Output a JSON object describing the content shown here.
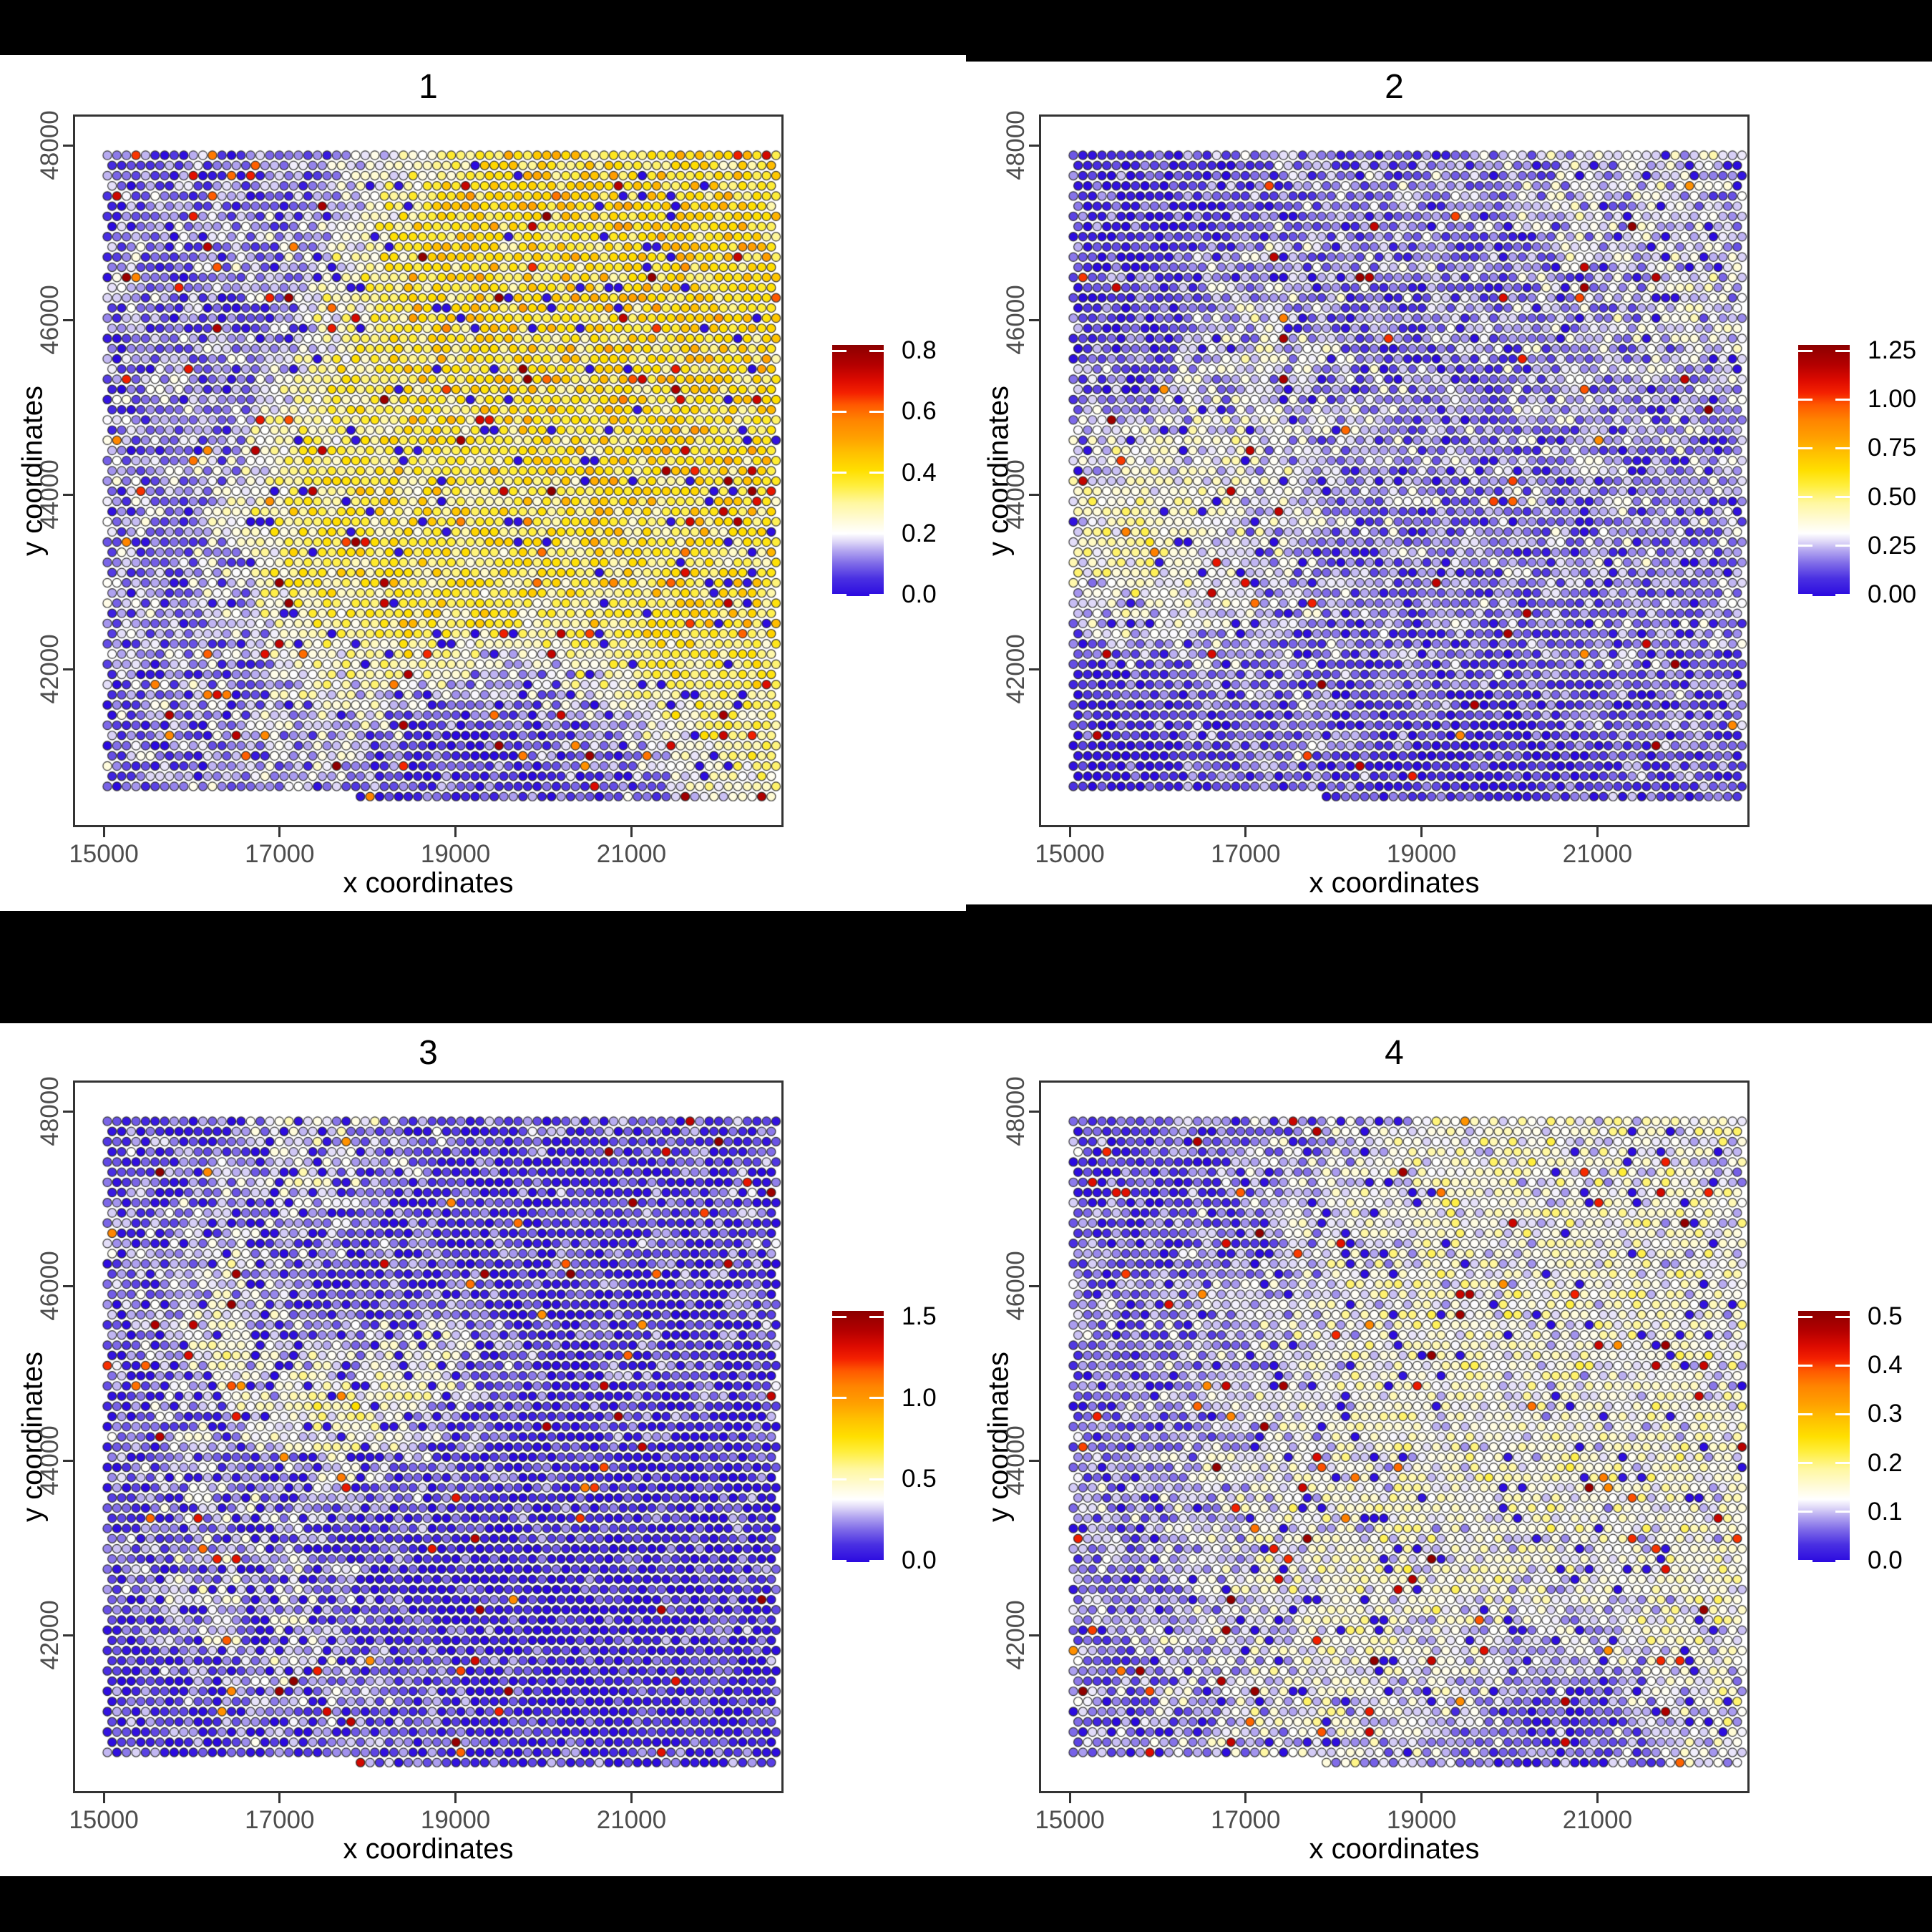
{
  "figure": {
    "background_color": "#ffffff",
    "panel_border_color": "#333333",
    "tick_label_color": "#4d4d4d",
    "letterbox_color": "#000000"
  },
  "colorbar_stops": [
    [
      0.0,
      "#2B0AE0"
    ],
    [
      0.07,
      "#4A30E2"
    ],
    [
      0.13,
      "#7F6BE8"
    ],
    [
      0.18,
      "#B3A6F0"
    ],
    [
      0.22,
      "#E2DCF8"
    ],
    [
      0.25,
      "#FFFFFF"
    ],
    [
      0.3,
      "#FFFBD9"
    ],
    [
      0.37,
      "#FFF7A0"
    ],
    [
      0.44,
      "#FFEE3C"
    ],
    [
      0.5,
      "#FFDF00"
    ],
    [
      0.57,
      "#FFC000"
    ],
    [
      0.63,
      "#FFA000"
    ],
    [
      0.7,
      "#FF8400"
    ],
    [
      0.76,
      "#FF5A00"
    ],
    [
      0.81,
      "#F42000"
    ],
    [
      0.86,
      "#DC0A00"
    ],
    [
      0.92,
      "#B40000"
    ],
    [
      1.0,
      "#8B0000"
    ]
  ],
  "chart_data": [
    {
      "type": "scatter",
      "title": "1",
      "xlabel": "x coordinates",
      "ylabel": "y coordinates",
      "x_ticks": [
        15000,
        17000,
        19000,
        21000
      ],
      "y_ticks": [
        48000,
        46000,
        44000,
        42000
      ],
      "x_range": [
        14700,
        22700
      ],
      "y_range": [
        40400,
        48330
      ],
      "legend_position": "right",
      "grid": "off",
      "colorbar": {
        "tick_labels": [
          "0.8",
          "0.6",
          "0.4",
          "0.2",
          "0.0"
        ],
        "limits": [
          0.0,
          0.82
        ]
      },
      "spots": {
        "layout": "hex-grid",
        "cols": 71,
        "rows": 64,
        "noise_pct": 11,
        "deep_blue_fraction": 0.05,
        "hot_red_fraction": 0.03,
        "seed": 101,
        "field_pct_12x12_top_to_bottom": [
          [
            13,
            13,
            14,
            15,
            18,
            32,
            46,
            50,
            50,
            48,
            46,
            45
          ],
          [
            13,
            13,
            14,
            15,
            26,
            45,
            52,
            50,
            48,
            50,
            50,
            48
          ],
          [
            13,
            14,
            14,
            16,
            30,
            48,
            50,
            46,
            50,
            52,
            50,
            50
          ],
          [
            13,
            14,
            15,
            18,
            36,
            48,
            46,
            50,
            48,
            50,
            52,
            50
          ],
          [
            14,
            14,
            16,
            30,
            44,
            42,
            48,
            46,
            50,
            48,
            50,
            48
          ],
          [
            14,
            15,
            18,
            36,
            42,
            46,
            44,
            48,
            46,
            50,
            48,
            46
          ],
          [
            14,
            15,
            25,
            40,
            44,
            40,
            46,
            44,
            48,
            46,
            48,
            44
          ],
          [
            14,
            16,
            20,
            38,
            46,
            44,
            40,
            46,
            44,
            46,
            44,
            46
          ],
          [
            14,
            15,
            18,
            30,
            40,
            46,
            44,
            40,
            44,
            46,
            46,
            44
          ],
          [
            13,
            15,
            16,
            22,
            34,
            28,
            22,
            18,
            28,
            40,
            44,
            42
          ],
          [
            13,
            14,
            15,
            18,
            24,
            8,
            5,
            8,
            10,
            24,
            40,
            38
          ],
          [
            13,
            14,
            14,
            16,
            14,
            6,
            4,
            5,
            8,
            14,
            30,
            34
          ]
        ]
      }
    },
    {
      "type": "scatter",
      "title": "2",
      "xlabel": "x coordinates",
      "ylabel": "y coordinates",
      "x_ticks": [
        15000,
        17000,
        19000,
        21000
      ],
      "y_ticks": [
        48000,
        46000,
        44000,
        42000
      ],
      "x_range": [
        14700,
        22700
      ],
      "y_range": [
        40400,
        48330
      ],
      "legend_position": "right",
      "grid": "off",
      "colorbar": {
        "tick_labels": [
          "1.25",
          "1.00",
          "0.75",
          "0.50",
          "0.25",
          "0.00"
        ],
        "limits": [
          0.0,
          1.3
        ]
      },
      "spots": {
        "layout": "hex-grid",
        "cols": 71,
        "rows": 64,
        "noise_pct": 10,
        "deep_blue_fraction": 0.07,
        "hot_red_fraction": 0.015,
        "seed": 202,
        "field_pct_12x12_top_to_bottom": [
          [
            8,
            6,
            8,
            12,
            14,
            14,
            15,
            15,
            20,
            22,
            24,
            20
          ],
          [
            6,
            5,
            7,
            12,
            15,
            15,
            15,
            15,
            22,
            24,
            22,
            20
          ],
          [
            7,
            6,
            14,
            22,
            18,
            14,
            15,
            14,
            20,
            22,
            24,
            22
          ],
          [
            8,
            7,
            16,
            24,
            20,
            15,
            14,
            15,
            18,
            20,
            22,
            20
          ],
          [
            10,
            12,
            20,
            22,
            18,
            16,
            15,
            14,
            16,
            18,
            18,
            18
          ],
          [
            22,
            28,
            30,
            25,
            20,
            18,
            16,
            15,
            16,
            16,
            16,
            16
          ],
          [
            30,
            36,
            30,
            24,
            20,
            16,
            15,
            16,
            16,
            16,
            15,
            16
          ],
          [
            28,
            33,
            28,
            22,
            17,
            15,
            14,
            15,
            15,
            16,
            16,
            16
          ],
          [
            22,
            26,
            22,
            18,
            15,
            14,
            13,
            14,
            14,
            15,
            15,
            15
          ],
          [
            6,
            8,
            14,
            16,
            14,
            12,
            11,
            10,
            12,
            13,
            14,
            14
          ],
          [
            3,
            4,
            10,
            15,
            13,
            9,
            6,
            6,
            8,
            10,
            12,
            12
          ],
          [
            4,
            3,
            8,
            13,
            12,
            8,
            5,
            4,
            6,
            8,
            10,
            12
          ]
        ]
      }
    },
    {
      "type": "scatter",
      "title": "3",
      "xlabel": "x coordinates",
      "ylabel": "y coordinates",
      "x_ticks": [
        15000,
        17000,
        19000,
        21000
      ],
      "y_ticks": [
        48000,
        46000,
        44000,
        42000
      ],
      "x_range": [
        14700,
        22700
      ],
      "y_range": [
        40400,
        48330
      ],
      "legend_position": "right",
      "grid": "off",
      "colorbar": {
        "tick_labels": [
          "1.5",
          "1.0",
          "0.5",
          "0.0"
        ],
        "limits": [
          0.0,
          1.55
        ]
      },
      "spots": {
        "layout": "hex-grid",
        "cols": 71,
        "rows": 64,
        "noise_pct": 10,
        "deep_blue_fraction": 0.2,
        "hot_red_fraction": 0.02,
        "seed": 303,
        "field_pct_12x12_top_to_bottom": [
          [
            10,
            10,
            12,
            20,
            24,
            15,
            10,
            10,
            10,
            10,
            10,
            10
          ],
          [
            10,
            12,
            18,
            28,
            18,
            12,
            10,
            8,
            10,
            10,
            12,
            10
          ],
          [
            12,
            15,
            22,
            18,
            12,
            10,
            8,
            8,
            8,
            10,
            10,
            10
          ],
          [
            10,
            18,
            25,
            15,
            10,
            8,
            8,
            6,
            8,
            8,
            10,
            10
          ],
          [
            12,
            20,
            30,
            25,
            15,
            34,
            20,
            8,
            8,
            8,
            10,
            10
          ],
          [
            10,
            15,
            22,
            30,
            40,
            28,
            12,
            8,
            6,
            8,
            8,
            10
          ],
          [
            12,
            18,
            15,
            20,
            24,
            12,
            8,
            6,
            8,
            6,
            8,
            8
          ],
          [
            10,
            12,
            18,
            15,
            10,
            8,
            6,
            6,
            6,
            8,
            8,
            8
          ],
          [
            12,
            20,
            24,
            18,
            12,
            8,
            6,
            5,
            6,
            6,
            8,
            8
          ],
          [
            8,
            15,
            20,
            24,
            15,
            10,
            6,
            5,
            5,
            6,
            6,
            8
          ],
          [
            10,
            8,
            12,
            15,
            20,
            12,
            8,
            5,
            4,
            5,
            6,
            8
          ],
          [
            8,
            10,
            10,
            12,
            14,
            10,
            8,
            6,
            5,
            6,
            8,
            8
          ]
        ]
      }
    },
    {
      "type": "scatter",
      "title": "4",
      "xlabel": "x coordinates",
      "ylabel": "y coordinates",
      "x_ticks": [
        15000,
        17000,
        19000,
        21000
      ],
      "y_ticks": [
        48000,
        46000,
        44000,
        42000
      ],
      "x_range": [
        14700,
        22700
      ],
      "y_range": [
        40400,
        48330
      ],
      "legend_position": "right",
      "grid": "off",
      "colorbar": {
        "tick_labels": [
          "0.5",
          "0.4",
          "0.3",
          "0.2",
          "0.1",
          "0.0"
        ],
        "limits": [
          0.0,
          0.52
        ]
      },
      "spots": {
        "layout": "hex-grid",
        "cols": 71,
        "rows": 64,
        "noise_pct": 10,
        "deep_blue_fraction": 0.07,
        "hot_red_fraction": 0.025,
        "seed": 404,
        "field_pct_12x12_top_to_bottom": [
          [
            12,
            10,
            12,
            15,
            18,
            22,
            25,
            28,
            30,
            28,
            26,
            28
          ],
          [
            10,
            8,
            10,
            15,
            20,
            25,
            28,
            30,
            28,
            30,
            28,
            26
          ],
          [
            12,
            10,
            14,
            16,
            22,
            26,
            30,
            28,
            30,
            28,
            30,
            28
          ],
          [
            14,
            12,
            15,
            18,
            24,
            28,
            28,
            30,
            28,
            30,
            28,
            30
          ],
          [
            15,
            14,
            16,
            20,
            26,
            28,
            30,
            28,
            30,
            28,
            30,
            28
          ],
          [
            15,
            15,
            18,
            22,
            26,
            30,
            28,
            30,
            28,
            30,
            28,
            30
          ],
          [
            16,
            15,
            20,
            24,
            28,
            28,
            30,
            28,
            30,
            28,
            30,
            28
          ],
          [
            16,
            16,
            20,
            26,
            28,
            30,
            28,
            30,
            28,
            28,
            30,
            28
          ],
          [
            15,
            16,
            22,
            26,
            28,
            28,
            30,
            28,
            26,
            28,
            28,
            30
          ],
          [
            15,
            16,
            20,
            26,
            28,
            30,
            26,
            24,
            20,
            24,
            28,
            28
          ],
          [
            14,
            15,
            18,
            24,
            28,
            26,
            22,
            15,
            10,
            15,
            25,
            28
          ],
          [
            14,
            15,
            18,
            22,
            26,
            24,
            18,
            10,
            8,
            12,
            20,
            26
          ]
        ]
      }
    }
  ]
}
